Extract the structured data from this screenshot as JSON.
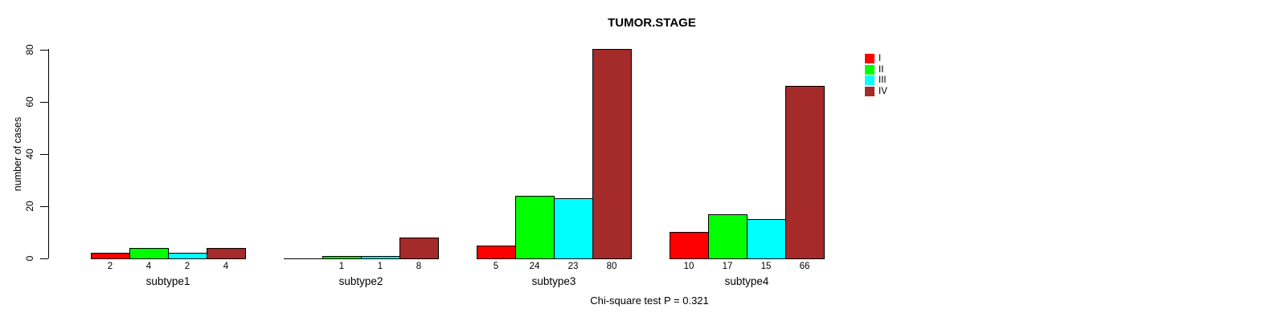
{
  "chart_data": {
    "type": "bar",
    "title": "TUMOR.STAGE",
    "ylabel": "number of cases",
    "ylim": [
      0,
      80
    ],
    "yticks": [
      0,
      20,
      40,
      60,
      80
    ],
    "ytick_labels": [
      "0",
      "20",
      "40",
      "60",
      "80"
    ],
    "categories": [
      "subtype1",
      "subtype2",
      "subtype3",
      "subtype4"
    ],
    "series": [
      {
        "name": "I",
        "color": "#FF0000",
        "values": [
          2,
          0,
          5,
          10
        ]
      },
      {
        "name": "II",
        "color": "#00FF00",
        "values": [
          4,
          1,
          24,
          17
        ]
      },
      {
        "name": "III",
        "color": "#00FFFF",
        "values": [
          2,
          1,
          23,
          15
        ]
      },
      {
        "name": "IV",
        "color": "#A52A2A",
        "values": [
          4,
          8,
          80,
          66
        ]
      }
    ],
    "bar_labels": [
      [
        "2",
        "4",
        "2",
        "4"
      ],
      [
        "",
        "1",
        "1",
        "8"
      ],
      [
        "5",
        "24",
        "23",
        "80"
      ],
      [
        "10",
        "17",
        "15",
        "66"
      ]
    ],
    "legend_position": "topright",
    "grid": false,
    "bar_border_color": "#000000",
    "caption": "Chi-square test P = 0.321"
  }
}
